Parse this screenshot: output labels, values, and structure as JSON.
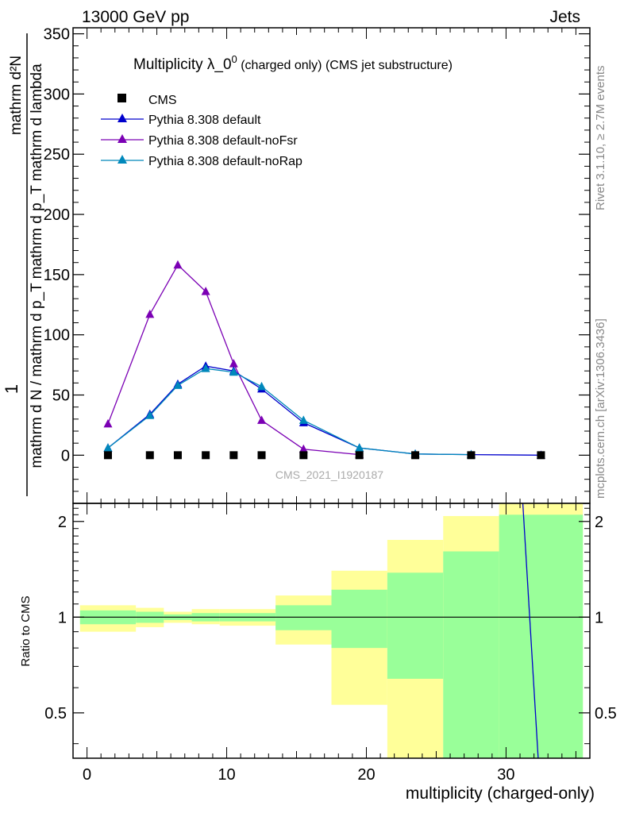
{
  "header": {
    "left": "13000 GeV pp",
    "right": "Jets"
  },
  "side_labels": {
    "rivet": "Rivet 3.1.10, ≥ 2.7M events",
    "mcplots": "mcplots.cern.ch [arXiv:1306.3436]"
  },
  "watermark": "CMS_2021_I1920187",
  "colors": {
    "cms": "#000000",
    "default": "#0000cc",
    "noFsr": "#7b00b4",
    "noRap": "#0088bb",
    "band_inner": "#99ff99",
    "band_outer": "#ffff99"
  },
  "chart_data": [
    {
      "type": "line",
      "title": "Multiplicity λ_0",
      "title_sup": "0",
      "title_suffix": " (charged only) (CMS jet substructure)",
      "ylabel": "mathrm d N / mathrm d p_T mathrm d p_T mathrm d lambda",
      "ylabel_prefix": "1",
      "ylabel_num": "mathrm d²N",
      "ylabel_den": "mathrm d N / mathrm d p_T mathrm d p_T mathrm d lambda",
      "xlabel": "multiplicity (charged-only)",
      "xlim": [
        -1,
        36
      ],
      "ylim": [
        -40,
        355
      ],
      "xticks": [
        0,
        10,
        20,
        30
      ],
      "yticks": [
        0,
        50,
        100,
        150,
        200,
        250,
        300,
        350
      ],
      "ytick_labels": [
        "0",
        "50",
        "100",
        "150",
        "200",
        "250",
        "300",
        "350"
      ],
      "legend_position": "top-left",
      "series": [
        {
          "name": "CMS",
          "marker": "square",
          "x": [
            1.5,
            4.5,
            6.5,
            8.5,
            10.5,
            12.5,
            15.5,
            19.5,
            23.5,
            27.5,
            32.5
          ],
          "y": [
            0,
            0,
            0,
            0,
            0,
            0,
            0,
            0,
            0,
            0,
            0
          ]
        },
        {
          "name": "Pythia 8.308 default",
          "marker": "triangle",
          "x": [
            1.5,
            4.5,
            6.5,
            8.5,
            10.5,
            12.5,
            15.5,
            19.5,
            23.5,
            27.5,
            32.5
          ],
          "y": [
            6,
            34,
            59,
            74,
            70,
            55,
            27,
            6,
            1,
            0.5,
            0
          ]
        },
        {
          "name": "Pythia 8.308 default-noFsr",
          "marker": "triangle",
          "x": [
            1.5,
            4.5,
            6.5,
            8.5,
            10.5,
            12.5,
            15.5,
            19.5
          ],
          "y": [
            26,
            117,
            158,
            136,
            76,
            29,
            5,
            0.5
          ]
        },
        {
          "name": "Pythia 8.308 default-noRap",
          "marker": "triangle",
          "x": [
            1.5,
            4.5,
            6.5,
            8.5,
            10.5,
            12.5,
            15.5,
            19.5,
            23.5,
            27.5
          ],
          "y": [
            6,
            33,
            58,
            72,
            69,
            57,
            29,
            6,
            1,
            0.5
          ]
        }
      ]
    },
    {
      "type": "area",
      "ylabel": "Ratio to CMS",
      "xlabel": "multiplicity (charged-only)",
      "xlim": [
        -1,
        36
      ],
      "ylim": [
        0.36,
        2.28
      ],
      "xticks": [
        0,
        10,
        20,
        30
      ],
      "xtick_labels": [
        "0",
        "10",
        "20",
        "30"
      ],
      "yticks": [
        0.5,
        1,
        2
      ],
      "ytick_labels": [
        "0.5",
        "1",
        "2"
      ],
      "bins": [
        {
          "x0": -0.5,
          "x1": 3.5,
          "inner": [
            0.95,
            1.05
          ],
          "outer": [
            0.9,
            1.09
          ]
        },
        {
          "x0": 3.5,
          "x1": 5.5,
          "inner": [
            0.96,
            1.04
          ],
          "outer": [
            0.93,
            1.07
          ]
        },
        {
          "x0": 5.5,
          "x1": 7.5,
          "inner": [
            0.98,
            1.02
          ],
          "outer": [
            0.96,
            1.04
          ]
        },
        {
          "x0": 7.5,
          "x1": 9.5,
          "inner": [
            0.97,
            1.03
          ],
          "outer": [
            0.95,
            1.06
          ]
        },
        {
          "x0": 9.5,
          "x1": 13.5,
          "inner": [
            0.97,
            1.03
          ],
          "outer": [
            0.94,
            1.06
          ]
        },
        {
          "x0": 13.5,
          "x1": 17.5,
          "inner": [
            0.91,
            1.09
          ],
          "outer": [
            0.82,
            1.17
          ]
        },
        {
          "x0": 17.5,
          "x1": 21.5,
          "inner": [
            0.8,
            1.22
          ],
          "outer": [
            0.53,
            1.4
          ]
        },
        {
          "x0": 21.5,
          "x1": 25.5,
          "inner": [
            0.64,
            1.38
          ],
          "outer": [
            0.3,
            1.75
          ]
        },
        {
          "x0": 25.5,
          "x1": 29.5,
          "inner": [
            0.3,
            1.61
          ],
          "outer": [
            0.3,
            2.08
          ]
        },
        {
          "x0": 29.5,
          "x1": 35.5,
          "inner": [
            0.3,
            2.1
          ],
          "outer": [
            0.3,
            2.4
          ]
        }
      ],
      "series": [
        {
          "name": "Pythia 8.308 default",
          "x": [
            31.2,
            32.3
          ],
          "y": [
            2.4,
            0.3
          ]
        }
      ]
    }
  ]
}
